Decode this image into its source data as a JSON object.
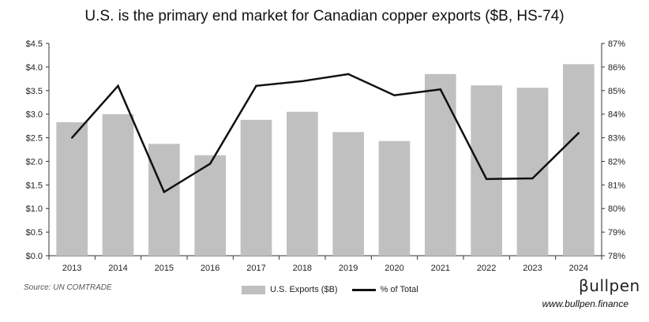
{
  "chart_data": {
    "type": "bar",
    "title": "U.S. is the primary end market for Canadian copper exports ($B, HS-74)",
    "categories": [
      "2013",
      "2014",
      "2015",
      "2016",
      "2017",
      "2018",
      "2019",
      "2020",
      "2021",
      "2022",
      "2023",
      "2024"
    ],
    "series": [
      {
        "name": "U.S. Exports ($B)",
        "type": "bar",
        "axis": "left",
        "color": "#c0c0c0",
        "values": [
          2.83,
          3.0,
          2.37,
          2.13,
          2.88,
          3.05,
          2.62,
          2.43,
          3.85,
          3.61,
          3.56,
          4.06
        ]
      },
      {
        "name": "% of Total",
        "type": "line",
        "axis": "right",
        "color": "#111111",
        "values": [
          83.0,
          85.2,
          80.7,
          81.9,
          85.2,
          85.4,
          85.7,
          84.8,
          85.05,
          81.25,
          81.28,
          83.2
        ]
      }
    ],
    "y_left": {
      "min": 0,
      "max": 4.5,
      "step": 0.5,
      "tick_labels": [
        "$0.0",
        "$0.5",
        "$1.0",
        "$1.5",
        "$2.0",
        "$2.5",
        "$3.0",
        "$3.5",
        "$4.0",
        "$4.5"
      ]
    },
    "y_right": {
      "min": 78,
      "max": 87,
      "step": 1,
      "tick_labels": [
        "78%",
        "79%",
        "80%",
        "81%",
        "82%",
        "83%",
        "84%",
        "85%",
        "86%",
        "87%"
      ]
    },
    "grid": false,
    "legend": "bottom-center"
  },
  "footer": {
    "source": "Source: UN COMTRADE",
    "brand": "βullpen",
    "website": "www.bullpen.finance"
  }
}
